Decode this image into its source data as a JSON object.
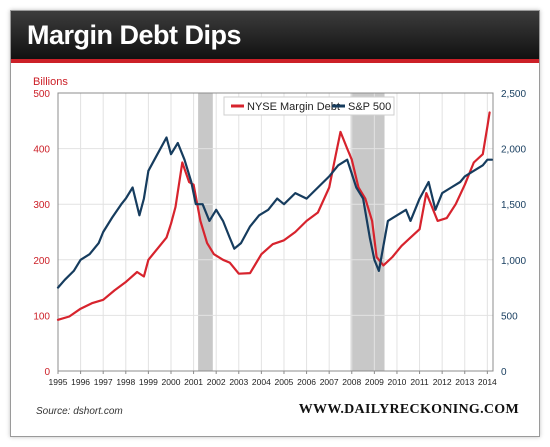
{
  "title": "Margin Debt Dips",
  "source": "Source: dshort.com",
  "brand": "WWW.DAILYRECKONING.COM",
  "colors": {
    "margin_debt": "#d7232d",
    "sp500": "#163c5e",
    "recession": "#c8c8c8",
    "left_axis": "#cc2028",
    "right_axis": "#163c5e"
  },
  "chart_data": {
    "type": "line",
    "title": "Margin Debt Dips",
    "y_left_label": "Billions",
    "x_ticks": [
      "1995",
      "1996",
      "1997",
      "1998",
      "1999",
      "2000",
      "2001",
      "2002",
      "2003",
      "2004",
      "2005",
      "2006",
      "2007",
      "2008",
      "2009",
      "2010",
      "2011",
      "2012",
      "2013",
      "2014"
    ],
    "y_left_ticks": [
      "0",
      "100",
      "200",
      "300",
      "400",
      "500"
    ],
    "y_right_ticks": [
      "0",
      "500",
      "1,000",
      "1,500",
      "2,000",
      "2,500"
    ],
    "x_range": [
      1995,
      2014.25
    ],
    "y_left_range": [
      0,
      500
    ],
    "y_right_range": [
      0,
      2500
    ],
    "grid": true,
    "legend_position": "top-center",
    "recessions": [
      [
        2001.2,
        2001.85
      ],
      [
        2007.95,
        2009.45
      ]
    ],
    "series": [
      {
        "name": "NYSE Margin Debt",
        "axis": "left",
        "x": [
          1995.0,
          1995.5,
          1996.0,
          1996.5,
          1997.0,
          1997.5,
          1998.0,
          1998.5,
          1998.8,
          1999.0,
          1999.5,
          1999.8,
          2000.0,
          2000.2,
          2000.5,
          2000.8,
          2001.0,
          2001.3,
          2001.6,
          2001.9,
          2002.3,
          2002.6,
          2003.0,
          2003.5,
          2004.0,
          2004.5,
          2005.0,
          2005.5,
          2006.0,
          2006.5,
          2007.0,
          2007.3,
          2007.5,
          2007.8,
          2008.0,
          2008.3,
          2008.6,
          2008.9,
          2009.1,
          2009.4,
          2009.8,
          2010.2,
          2010.6,
          2011.0,
          2011.3,
          2011.5,
          2011.8,
          2012.2,
          2012.6,
          2013.0,
          2013.4,
          2013.8,
          2014.0,
          2014.1
        ],
        "values": [
          92,
          98,
          112,
          122,
          128,
          145,
          160,
          178,
          170,
          200,
          225,
          240,
          265,
          295,
          375,
          340,
          335,
          270,
          230,
          210,
          200,
          195,
          175,
          176,
          210,
          228,
          235,
          250,
          270,
          285,
          330,
          390,
          430,
          400,
          380,
          330,
          310,
          270,
          205,
          190,
          205,
          225,
          240,
          255,
          320,
          300,
          270,
          275,
          300,
          335,
          375,
          390,
          440,
          465
        ]
      },
      {
        "name": "S&P 500",
        "axis": "right",
        "x": [
          1995.0,
          1995.3,
          1995.7,
          1996.0,
          1996.4,
          1996.8,
          1997.0,
          1997.4,
          1997.8,
          1998.0,
          1998.3,
          1998.6,
          1998.8,
          1999.0,
          1999.4,
          1999.8,
          2000.0,
          2000.3,
          2000.6,
          2000.9,
          2001.1,
          2001.4,
          2001.7,
          2002.0,
          2002.3,
          2002.6,
          2002.8,
          2003.1,
          2003.5,
          2003.9,
          2004.3,
          2004.7,
          2005.0,
          2005.5,
          2006.0,
          2006.5,
          2007.0,
          2007.4,
          2007.8,
          2008.2,
          2008.5,
          2008.8,
          2009.0,
          2009.2,
          2009.6,
          2010.0,
          2010.4,
          2010.6,
          2011.0,
          2011.4,
          2011.7,
          2012.0,
          2012.4,
          2012.8,
          2013.0,
          2013.4,
          2013.8,
          2014.0,
          2014.2
        ],
        "values": [
          750,
          820,
          900,
          1000,
          1050,
          1150,
          1250,
          1380,
          1500,
          1550,
          1650,
          1400,
          1550,
          1800,
          1950,
          2100,
          1950,
          2050,
          1900,
          1700,
          1500,
          1500,
          1350,
          1450,
          1350,
          1200,
          1100,
          1150,
          1300,
          1400,
          1450,
          1550,
          1500,
          1600,
          1550,
          1650,
          1750,
          1850,
          1900,
          1650,
          1550,
          1200,
          1000,
          900,
          1350,
          1400,
          1450,
          1350,
          1550,
          1700,
          1450,
          1600,
          1650,
          1700,
          1750,
          1800,
          1850,
          1900,
          1900
        ]
      }
    ]
  }
}
